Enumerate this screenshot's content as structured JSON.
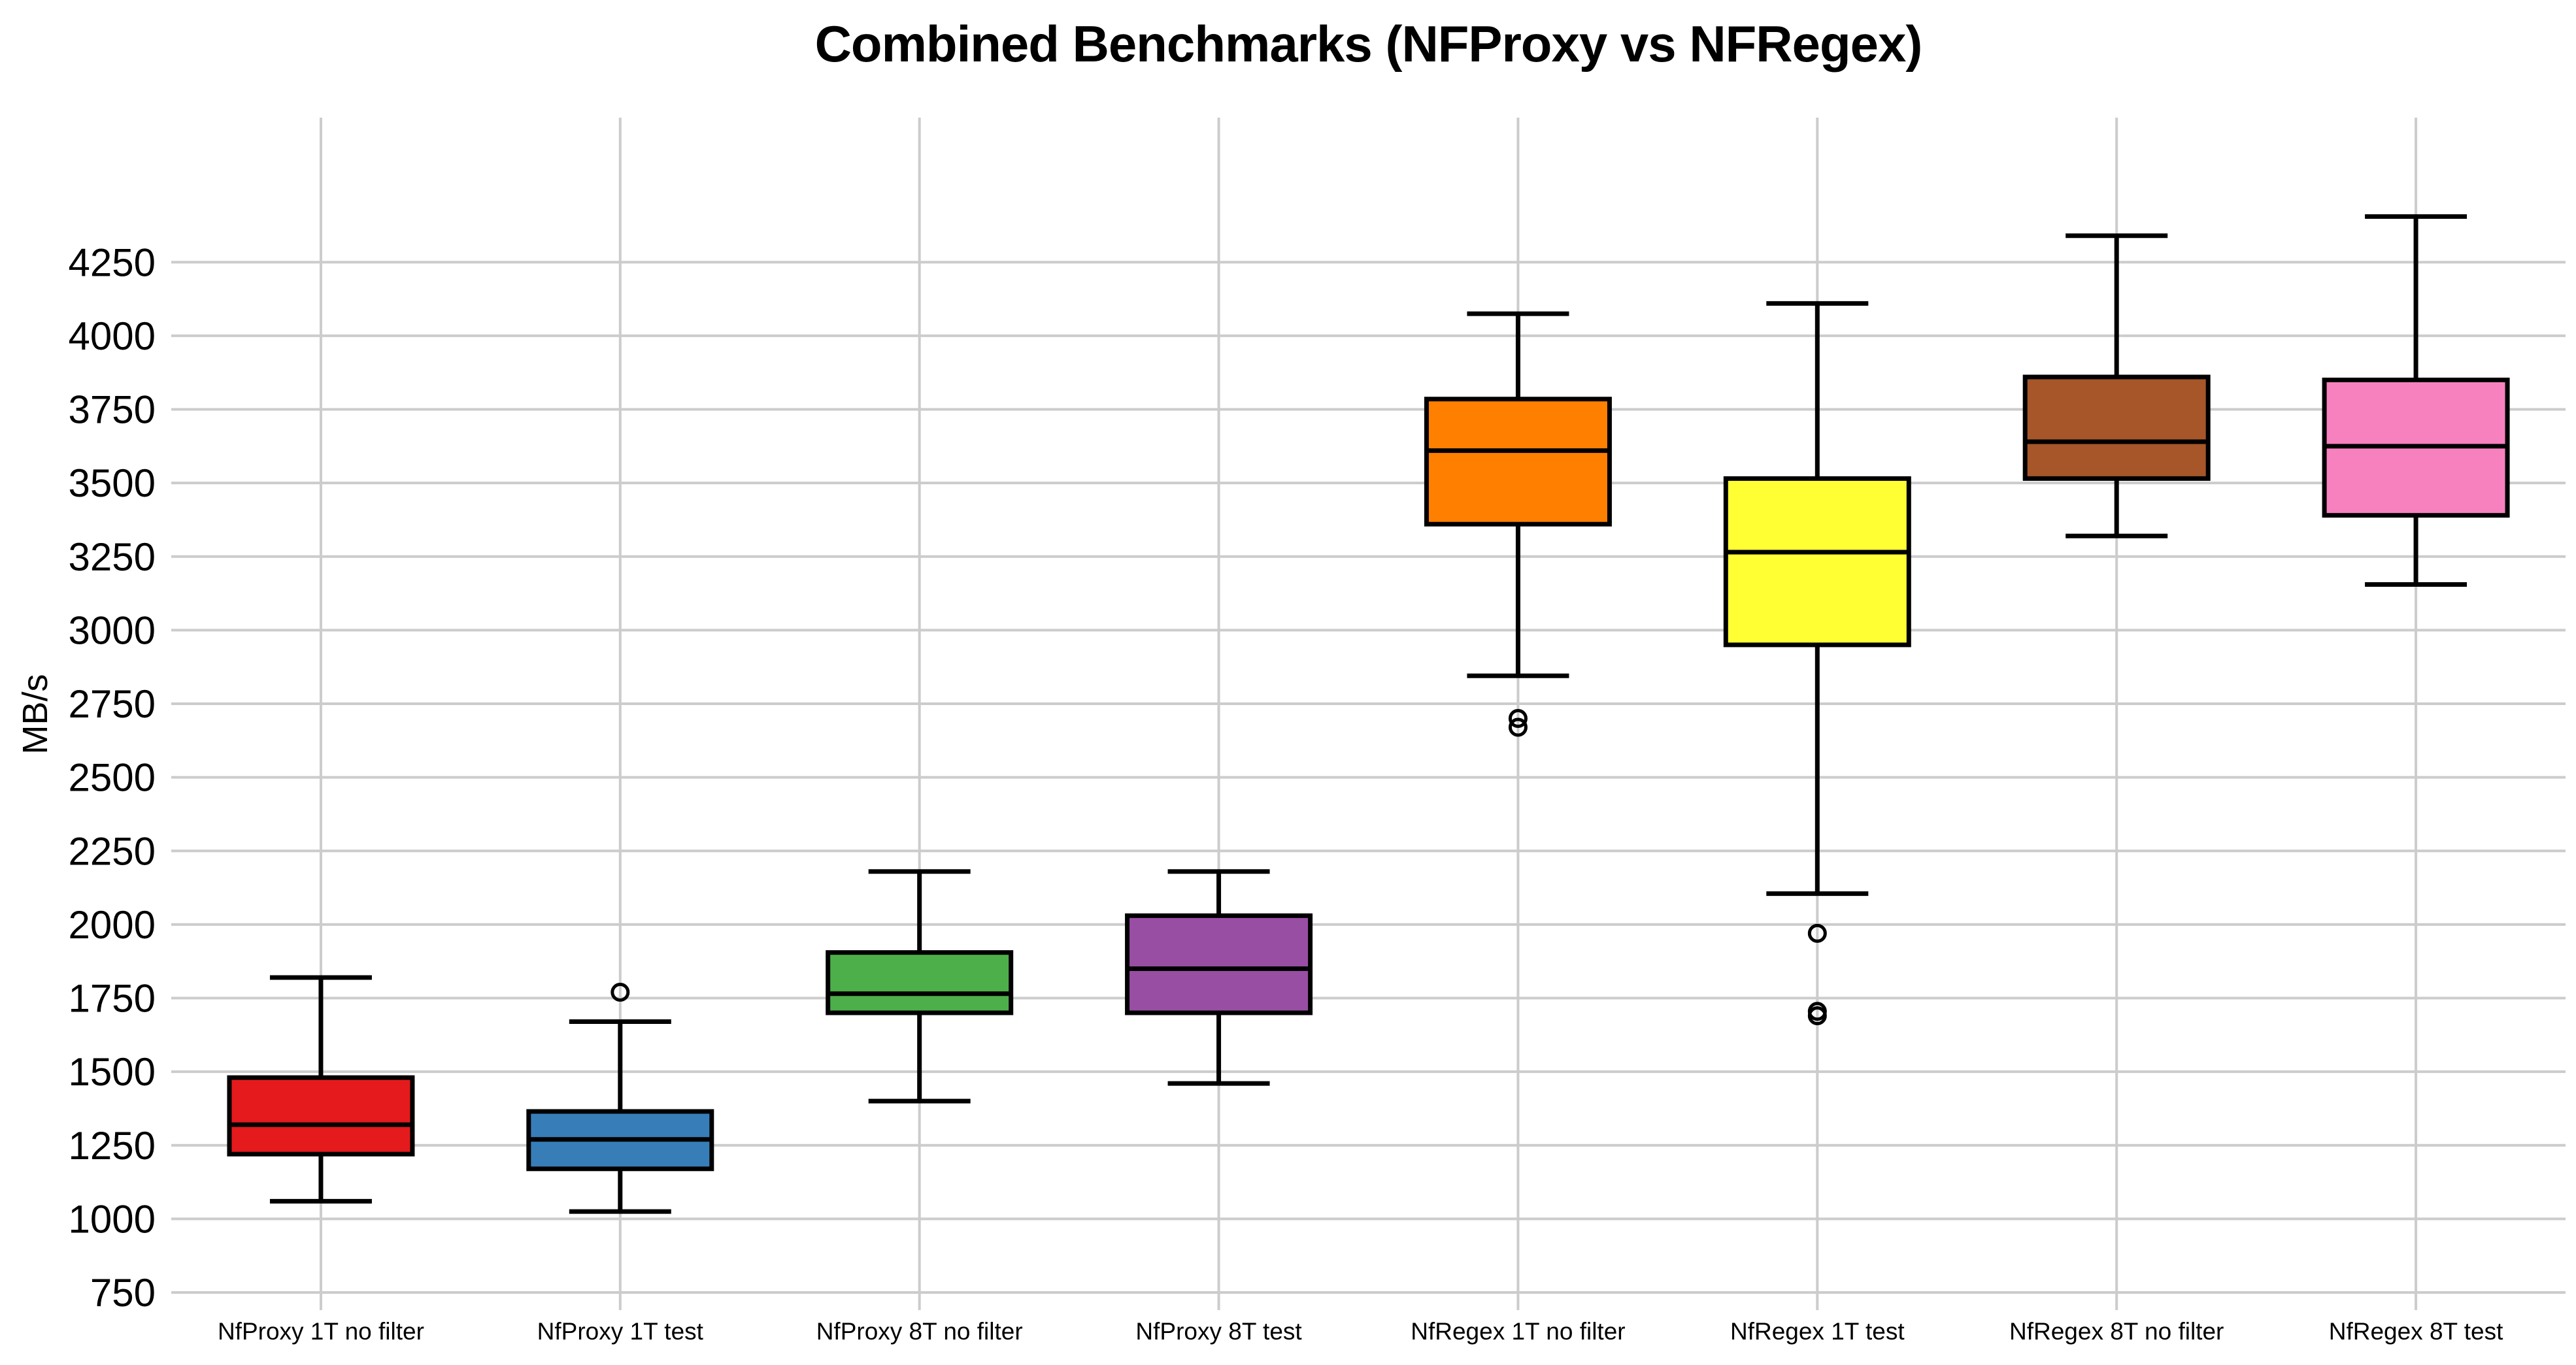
{
  "title": "Combined Benchmarks (NFProxy vs NFRegex)",
  "colors": {
    "background": "#ffffff",
    "grid": "#cccccc",
    "box_edge": "#000000",
    "text": "#000000"
  },
  "chart_data": {
    "type": "boxplot",
    "title": "Combined Benchmarks (NFProxy vs NFRegex)",
    "xlabel": "",
    "ylabel": "MB/s",
    "ylim": [
      690,
      4740
    ],
    "yticks": [
      750,
      1000,
      1250,
      1500,
      1750,
      2000,
      2250,
      2500,
      2750,
      3000,
      3250,
      3500,
      3750,
      4000,
      4250
    ],
    "grid": "horizontal and vertical light-gray gridlines, no axis spines",
    "legend_position": "none",
    "categories": [
      "NfProxy 1T no filter",
      "NfProxy 1T test",
      "NfProxy 8T no filter",
      "NfProxy 8T test",
      "NfRegex 1T no filter",
      "NfRegex 1T test",
      "NfRegex 8T no filter",
      "NfRegex 8T test"
    ],
    "series": [
      {
        "name": "NfProxy 1T no filter",
        "color": "#e41a1c",
        "whisker_low": 1060,
        "q1": 1220,
        "median": 1320,
        "q3": 1480,
        "whisker_high": 1820,
        "outliers": []
      },
      {
        "name": "NfProxy 1T test",
        "color": "#377eb8",
        "whisker_low": 1025,
        "q1": 1170,
        "median": 1270,
        "q3": 1365,
        "whisker_high": 1670,
        "outliers": [
          1770
        ]
      },
      {
        "name": "NfProxy 8T no filter",
        "color": "#4daf4a",
        "whisker_low": 1400,
        "q1": 1700,
        "median": 1765,
        "q3": 1905,
        "whisker_high": 2180,
        "outliers": []
      },
      {
        "name": "NfProxy 8T test",
        "color": "#984ea3",
        "whisker_low": 1460,
        "q1": 1700,
        "median": 1850,
        "q3": 2030,
        "whisker_high": 2180,
        "outliers": []
      },
      {
        "name": "NfRegex 1T no filter",
        "color": "#ff7f00",
        "whisker_low": 2845,
        "q1": 3360,
        "median": 3610,
        "q3": 3785,
        "whisker_high": 4075,
        "outliers": [
          2700,
          2670
        ]
      },
      {
        "name": "NfRegex 1T test",
        "color": "#ffff33",
        "whisker_low": 2105,
        "q1": 2950,
        "median": 3265,
        "q3": 3515,
        "whisker_high": 4110,
        "outliers": [
          1970,
          1705,
          1690
        ]
      },
      {
        "name": "NfRegex 8T no filter",
        "color": "#a65628",
        "whisker_low": 3320,
        "q1": 3515,
        "median": 3640,
        "q3": 3860,
        "whisker_high": 4340,
        "outliers": []
      },
      {
        "name": "NfRegex 8T test",
        "color": "#f781bf",
        "whisker_low": 3155,
        "q1": 3390,
        "median": 3625,
        "q3": 3850,
        "whisker_high": 4405,
        "outliers": []
      }
    ]
  }
}
